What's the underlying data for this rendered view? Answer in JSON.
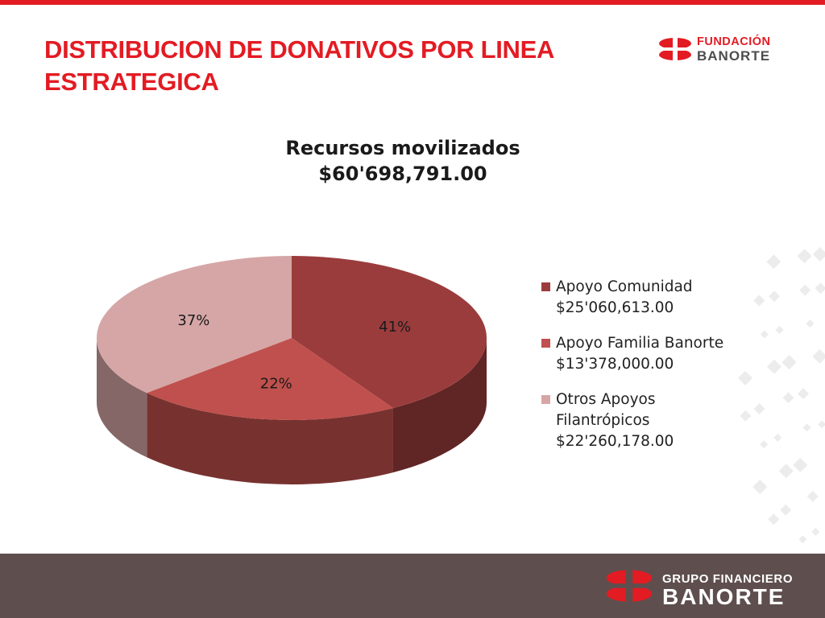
{
  "slide": {
    "title": "DISTRIBUCION DE DONATIVOS POR LINEA ESTRATEGICA",
    "logo_top_line1": "FUNDACIÓN",
    "logo_top_line2": "BANORTE",
    "footer_line1": "GRUPO FINANCIERO",
    "footer_line2": "BANORTE"
  },
  "colors": {
    "accent": "#e31b23",
    "footer": "#5e4f4e",
    "slice_comunidad": "#9b3c3c",
    "slice_familia": "#c0504d",
    "slice_otros": "#d6a6a6"
  },
  "chart_data": {
    "type": "pie",
    "title": "Recursos movilizados",
    "subtitle": "$60'698,791.00",
    "legend_position": "right",
    "slices": [
      {
        "legend_line1": "Apoyo Comunidad",
        "legend_line2": "$25'060,613.00",
        "value": 25060613.0,
        "percent_label": "41%",
        "color": "#9b3c3c"
      },
      {
        "legend_line1": "Apoyo Familia Banorte",
        "legend_line2": "$13'378,000.00",
        "value": 13378000.0,
        "percent_label": "22%",
        "color": "#c0504d"
      },
      {
        "legend_line1": "Otros Apoyos",
        "legend_line2": "Filantrópicos",
        "legend_line3": "$22'260,178.00",
        "value": 22260178.0,
        "percent_label": "37%",
        "color": "#d6a6a6"
      }
    ]
  }
}
